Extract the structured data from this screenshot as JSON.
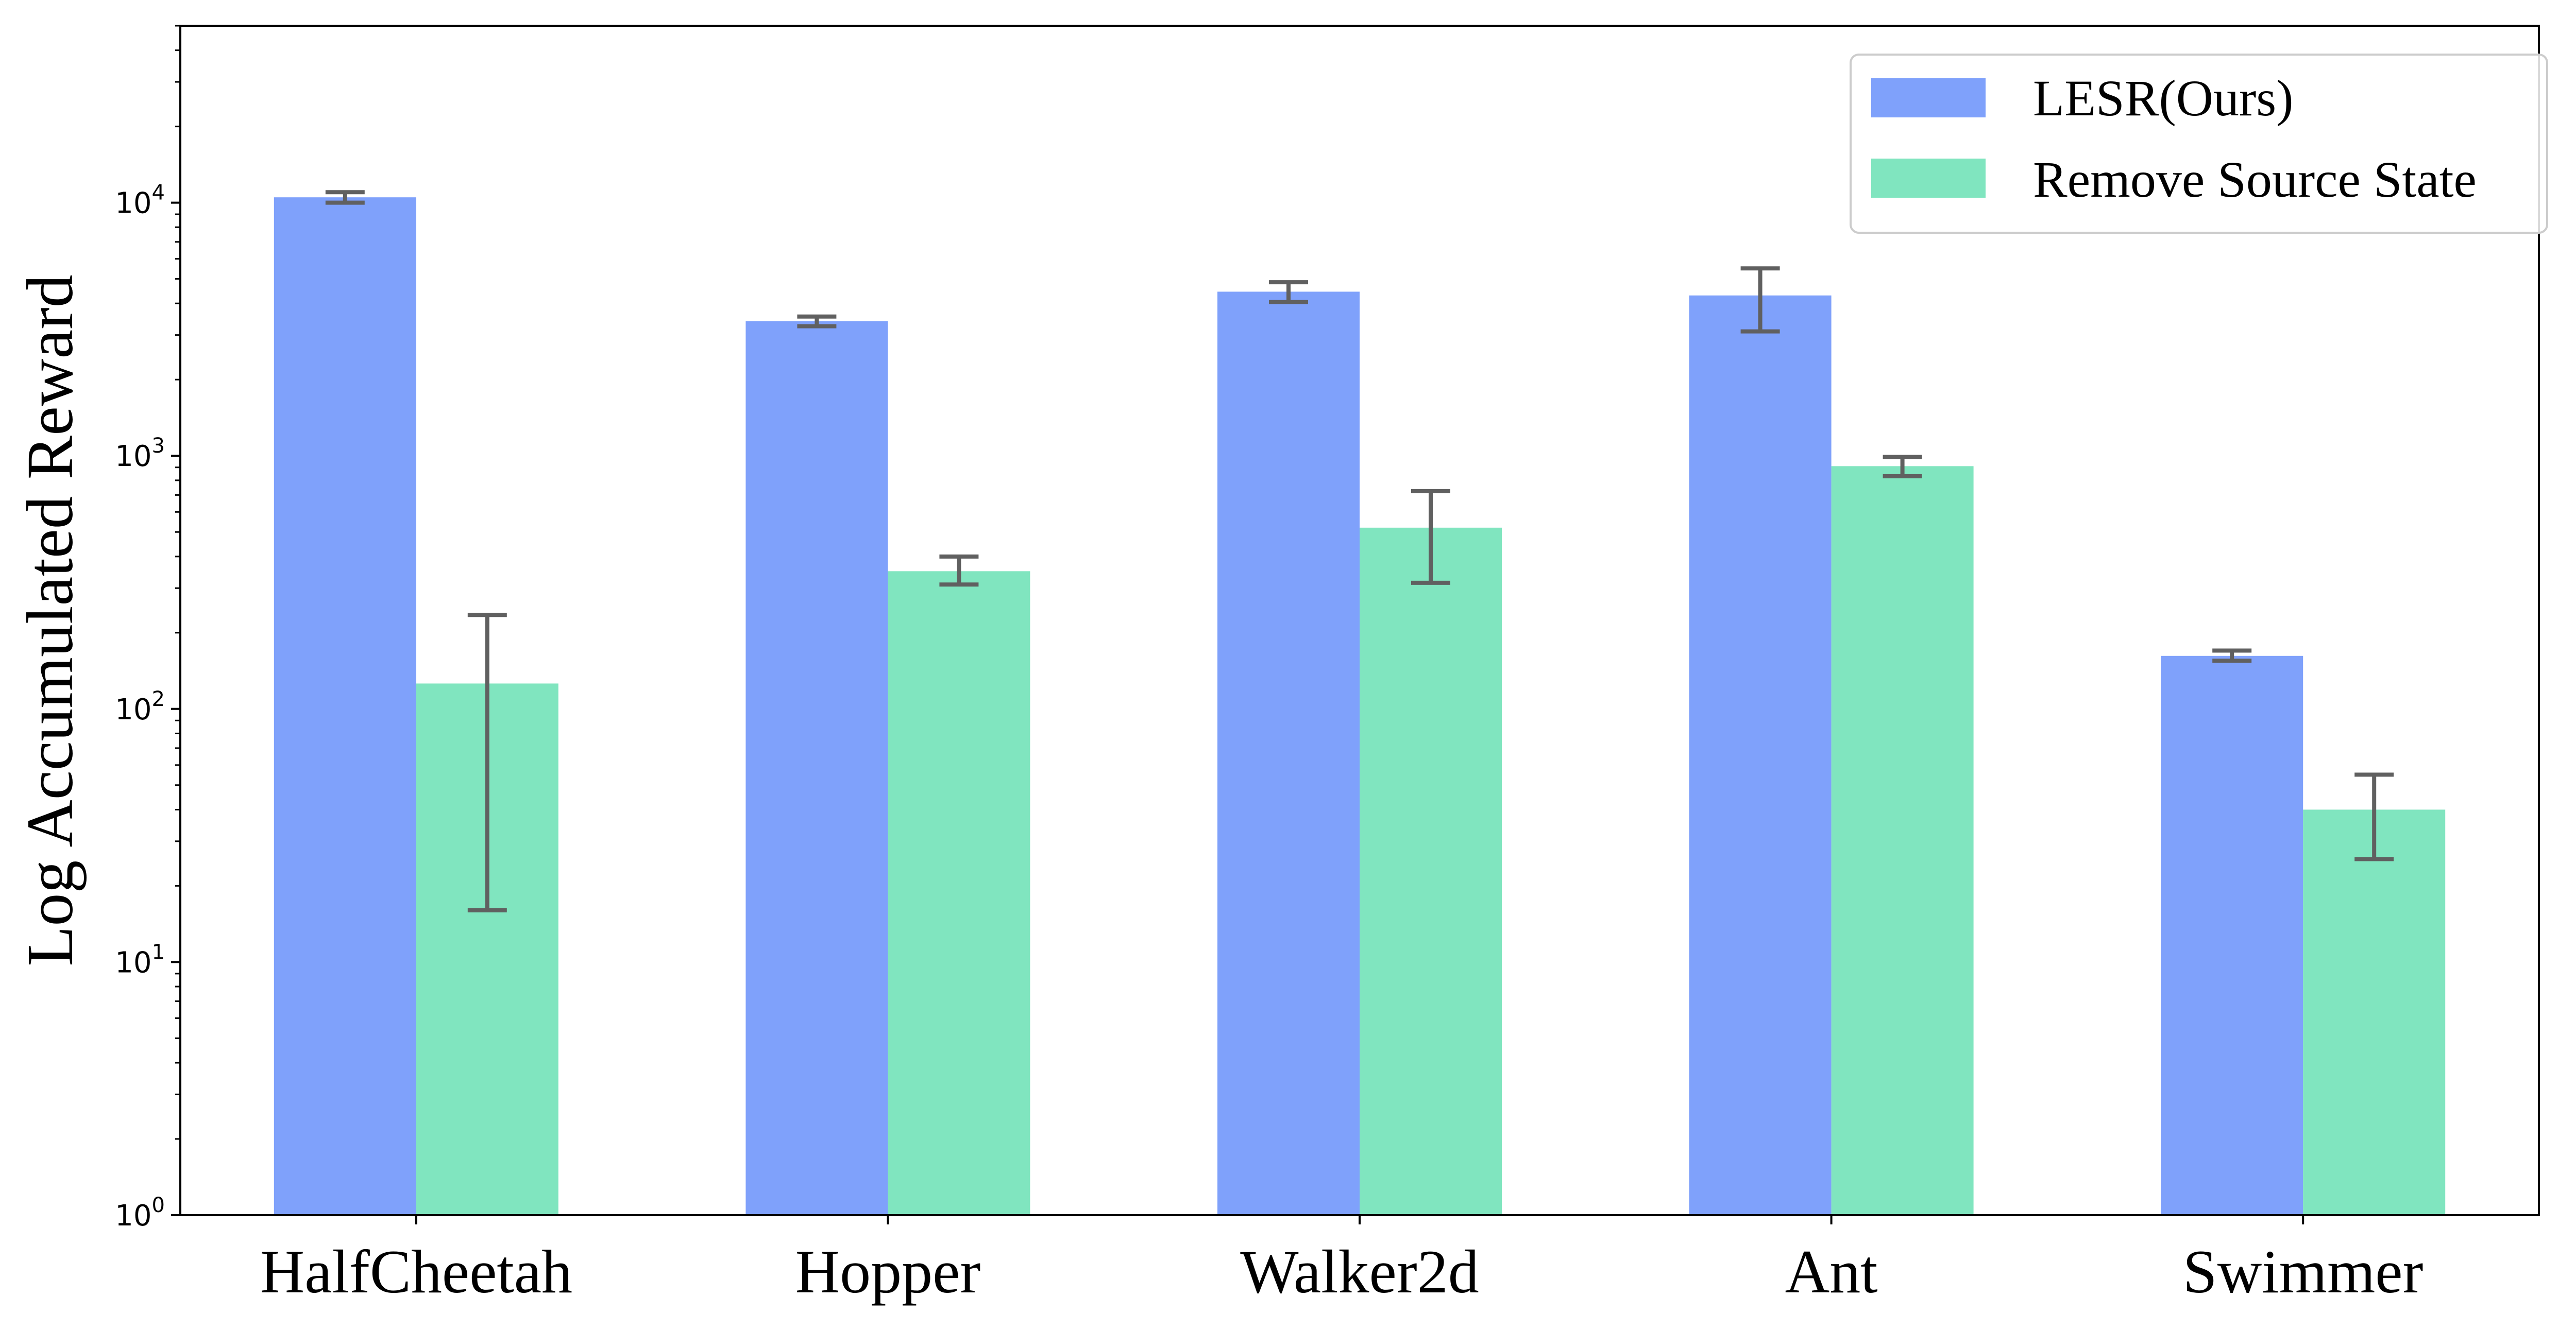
{
  "chart_data": {
    "type": "bar",
    "title": "",
    "xlabel": "",
    "ylabel": "Log Accumulated Reward",
    "yscale": "log",
    "ylim": [
      1,
      50000
    ],
    "yticks": [
      {
        "value": 1,
        "base": "10",
        "exp": "0"
      },
      {
        "value": 10,
        "base": "10",
        "exp": "1"
      },
      {
        "value": 100,
        "base": "10",
        "exp": "2"
      },
      {
        "value": 1000,
        "base": "10",
        "exp": "3"
      },
      {
        "value": 10000,
        "base": "10",
        "exp": "4"
      }
    ],
    "grid": false,
    "legend_position": "top-right",
    "categories": [
      "HalfCheetah",
      "Hopper",
      "Walker2d",
      "Ant",
      "Swimmer"
    ],
    "series": [
      {
        "name": "LESR(Ours)",
        "color": "#7fa1fb",
        "values": [
          10500,
          3400,
          4450,
          4300,
          162
        ],
        "err_low": [
          10000,
          3250,
          4050,
          3100,
          155
        ],
        "err_high": [
          11000,
          3550,
          4850,
          5500,
          170
        ]
      },
      {
        "name": "Remove Source State",
        "color": "#80e5bf",
        "values": [
          126,
          350,
          520,
          910,
          40
        ],
        "err_low": [
          16,
          310,
          315,
          830,
          25.5
        ],
        "err_high": [
          235,
          400,
          725,
          990,
          55
        ]
      }
    ],
    "error_bar_color": "#606060"
  }
}
